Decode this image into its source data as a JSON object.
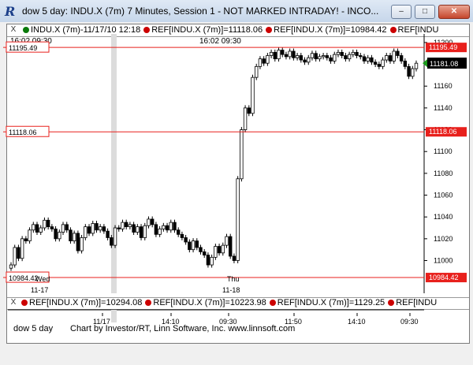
{
  "window": {
    "title": "dow 5 day: INDU.X (7m) 7 Minutes, Session 1 - NOT MARKED INTRADAY! - INCO...",
    "app_icon": "R",
    "minimize_label": "–",
    "maximize_label": "□",
    "close_label": "✕"
  },
  "top_strip": {
    "x_label": "X",
    "symbol_text": "INDU.X (7m)-11/17/10 12:18",
    "refs": [
      "REF[INDU.X (7m)]=11118.06",
      "REF[INDU.X (7m)]=10984.42",
      "REF[INDU"
    ]
  },
  "time_header": {
    "left": "16:02  09:30",
    "mid": "16:02  09:30"
  },
  "bottom_strip": {
    "x_label": "X",
    "refs": [
      "REF[INDU.X (7m)]=10294.08",
      "REF[INDU.X (7m)]=10223.98",
      "REF[INDU.X (7m)]=1129.25",
      "REF[INDU"
    ]
  },
  "footer": {
    "chart_name": "dow 5 day",
    "credit": "Chart by Investor/RT, Linn Software, Inc. www.linnsoft.com"
  },
  "colors": {
    "ref_line": "#e8201c",
    "candle_up": "#ffffff",
    "candle_down": "#000000",
    "last_price_box": "#000000",
    "last_price_arrow": "#1a9a1a"
  },
  "chart_data": {
    "type": "candlestick",
    "symbol": "INDU.X (7m)",
    "ylim": [
      10970,
      11205
    ],
    "y_ticks": [
      11000,
      11020,
      11040,
      11060,
      11080,
      11100,
      11120,
      11140,
      11160,
      11180,
      11200
    ],
    "reference_lines": [
      {
        "value": 11195.49,
        "label": "11195.49"
      },
      {
        "value": 11118.06,
        "label": "11118.06"
      },
      {
        "value": 10984.42,
        "label": "10984.42"
      }
    ],
    "last_price": 11181.08,
    "last_price_label": "11181.08",
    "day_labels": [
      {
        "text": "Wed",
        "sub": "11-17"
      },
      {
        "text": "Thu",
        "sub": "11-18"
      }
    ],
    "x_tick_labels": [
      "11/17",
      "14:10",
      "09:30",
      "11:50",
      "14:10",
      "09:30"
    ],
    "closes": [
      10996,
      11012,
      11002,
      11020,
      11018,
      11028,
      11033,
      11026,
      11030,
      11037,
      11031,
      11029,
      11020,
      11026,
      11033,
      11028,
      11018,
      11025,
      11009,
      11021,
      11031,
      11025,
      11034,
      11028,
      11031,
      11027,
      11021,
      11014,
      11030,
      11029,
      11035,
      11031,
      11033,
      11026,
      11031,
      11021,
      11032,
      11038,
      11033,
      11024,
      11029,
      11032,
      11028,
      11035,
      11028,
      11024,
      11021,
      11017,
      11010,
      11018,
      11012,
      11008,
      11005,
      10996,
      11003,
      11013,
      11007,
      11014,
      11022,
      11004,
      11000,
      11075,
      11120,
      11140,
      11135,
      11168,
      11178,
      11185,
      11181,
      11188,
      11191,
      11185,
      11193,
      11189,
      11187,
      11192,
      11186,
      11188,
      11184,
      11182,
      11186,
      11190,
      11185,
      11187,
      11188,
      11186,
      11183,
      11189,
      11191,
      11188,
      11185,
      11189,
      11191,
      11188,
      11187,
      11183,
      11186,
      11182,
      11180,
      11178,
      11184,
      11188,
      11183,
      11192,
      11188,
      11183,
      11178,
      11169,
      11176,
      11181
    ]
  }
}
